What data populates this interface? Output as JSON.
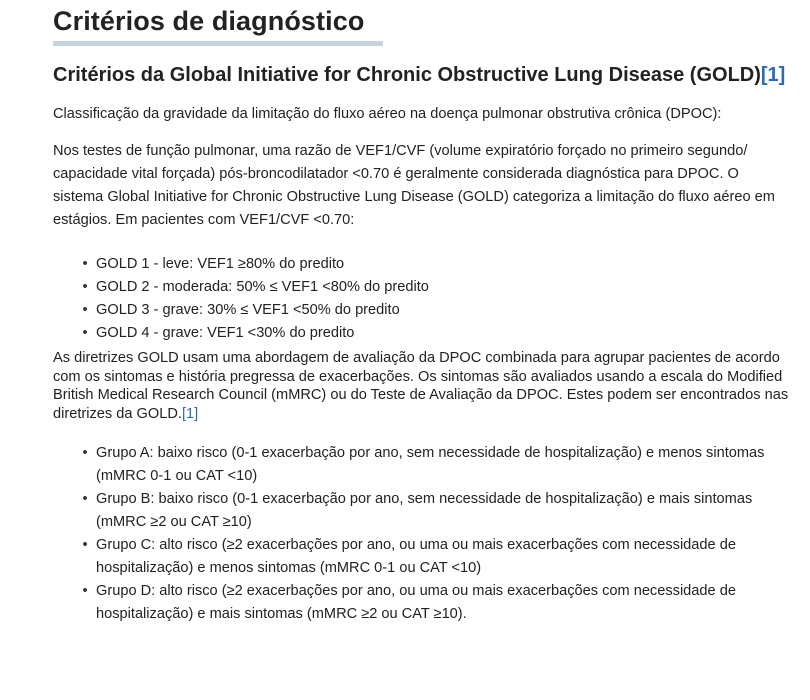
{
  "heading": "Critérios de diagnóstico",
  "subheading": {
    "text": "Critérios da Global Initiative for Chronic Obstructive Lung Disease (GOLD)",
    "ref": "[1]"
  },
  "intro": "Classificação da gravidade da limitação do fluxo aéreo na doença pulmonar obstrutiva crônica (DPOC):",
  "paragraph": "Nos testes de função pulmonar, uma razão de VEF1/CVF (volume expiratório forçado no primeiro segundo/ capacidade vital forçada) pós-broncodilatador <0.70 é geralmente considerada diagnóstica para DPOC. O sistema Global Initiative for Chronic Obstructive Lung Disease (GOLD) categoriza a limitação do fluxo aéreo em estágios. Em pacientes com VEF1/CVF <0.70:",
  "gold_stages": [
    "GOLD 1 - leve: VEF1 ≥80% do predito",
    "GOLD 2 - moderada: 50% ≤ VEF1 <80% do predito",
    "GOLD 3 - grave: 30% ≤ VEF1 <50% do predito",
    "GOLD 4 - grave: VEF1 <30% do predito"
  ],
  "groups_paragraph": {
    "text": "As diretrizes GOLD usam uma abordagem de avaliação da DPOC combinada para agrupar pacientes de acordo com os sintomas e história pregressa de exacerbações. Os sintomas são avaliados usando a escala do Modified British Medical Research Council (mMRC) ou do Teste de Avaliação da DPOC. Estes podem ser encontrados nas diretrizes da GOLD.",
    "ref": "[1]"
  },
  "groups": [
    "Grupo A: baixo risco (0-1 exacerbação por ano, sem necessidade de hospitalização) e menos sintomas (mMRC 0-1 ou CAT <10)",
    "Grupo B: baixo risco (0-1 exacerbação por ano, sem necessidade de hospitalização) e mais sintomas (mMRC ≥2 ou CAT ≥10)",
    "Grupo C: alto risco (≥2 exacerbações por ano, ou uma ou mais exacerbações com necessidade de hospitalização) e menos sintomas (mMRC 0-1 ou CAT <10)",
    "Grupo D: alto risco (≥2 exacerbações por ano, ou uma ou mais exacerbações com necessidade de hospitalização) e mais sintomas (mMRC ≥2 ou CAT ≥10)."
  ],
  "bullet_glyph": "•",
  "colors": {
    "link": "#2a6db0",
    "heading_rule": "#c5d3df",
    "text": "#222222"
  }
}
